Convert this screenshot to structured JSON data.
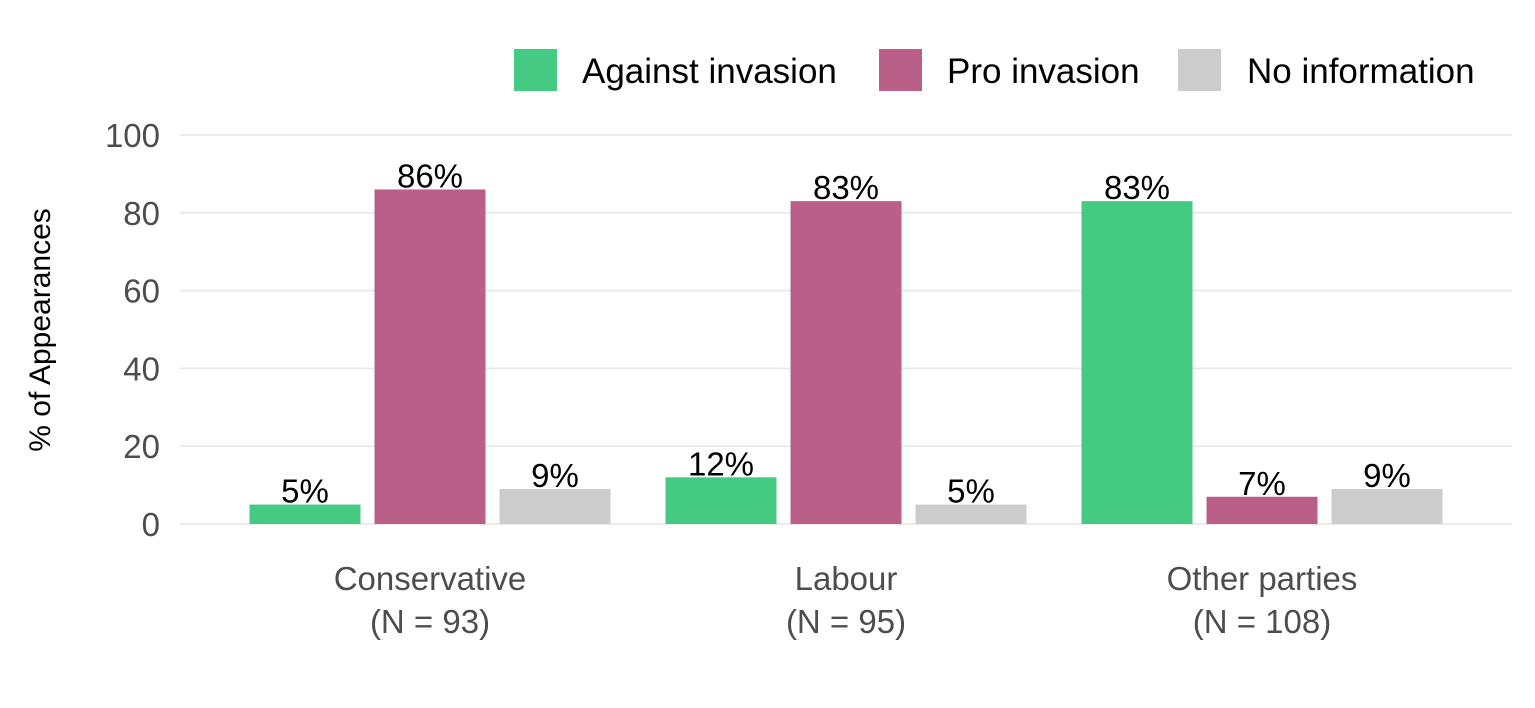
{
  "chart_data": {
    "type": "bar",
    "title": "",
    "xlabel": "",
    "ylabel": "% of Appearances",
    "ylim": [
      0,
      100
    ],
    "yticks": [
      "0",
      "20",
      "40",
      "60",
      "80",
      "100"
    ],
    "grid": true,
    "legend_position": "top-right",
    "categories": [
      {
        "name": "Conservative",
        "n_label": "(N = 93)"
      },
      {
        "name": "Labour",
        "n_label": "(N = 95)"
      },
      {
        "name": "Other parties",
        "n_label": "(N = 108)"
      }
    ],
    "series": [
      {
        "name": "Against invasion",
        "color": "#45ca84",
        "values": [
          5,
          12,
          83
        ],
        "labels": [
          "5%",
          "12%",
          "83%"
        ]
      },
      {
        "name": "Pro invasion",
        "color": "#b95f88",
        "values": [
          86,
          83,
          7
        ],
        "labels": [
          "86%",
          "83%",
          "7%"
        ]
      },
      {
        "name": "No information",
        "color": "#cccccc",
        "values": [
          9,
          5,
          9
        ],
        "labels": [
          "9%",
          "5%",
          "9%"
        ]
      }
    ]
  }
}
